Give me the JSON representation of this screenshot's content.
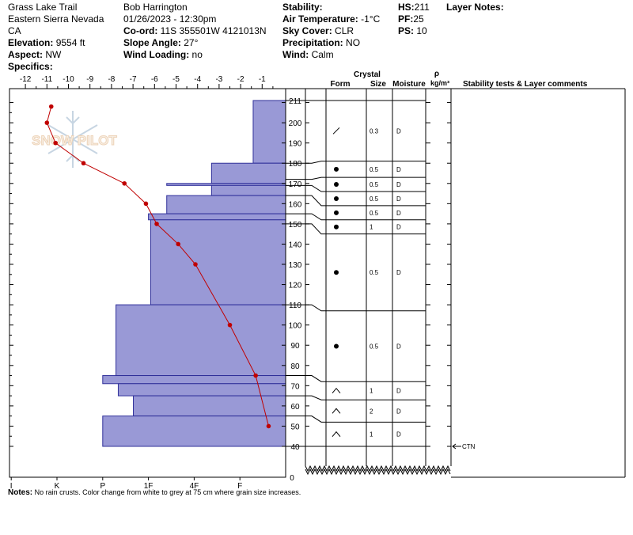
{
  "header": {
    "location": "Grass Lake Trail",
    "range": "Eastern Sierra Nevada",
    "state": "CA",
    "elevation_label": "Elevation:",
    "elevation": "9554 ft",
    "aspect_label": "Aspect:",
    "aspect": "NW",
    "specifics_label": "Specifics:",
    "observer": "Bob Harrington",
    "datetime": "01/26/2023 - 12:30pm",
    "coord_label": "Co-ord:",
    "coord": "11S 355501W 4121013N",
    "slope_label": "Slope Angle:",
    "slope": "27°",
    "wind_loading_label": "Wind Loading:",
    "wind_loading": "no",
    "stability_label": "Stability:",
    "air_temp_label": "Air Temperature:",
    "air_temp": "-1°C",
    "sky_label": "Sky Cover:",
    "sky": "CLR",
    "precip_label": "Precipitation:",
    "precip": "NO",
    "wind_label": "Wind:",
    "wind": "Calm",
    "hs_label": "HS:",
    "hs": "211",
    "pf_label": "PF:",
    "pf": "25",
    "ps_label": "PS:",
    "ps": "10",
    "layer_notes_label": "Layer Notes:"
  },
  "table_headers": {
    "crystal": "Crystal",
    "form": "Form",
    "size": "Size",
    "moisture": "Moisture",
    "rho": "ρ",
    "density_unit": "kg/m³",
    "stability": "Stability tests & Layer comments"
  },
  "watermark": "SNOW PILOT",
  "notes_label": "Notes:",
  "notes_text": "No rain crusts.  Color change from white to grey at 75 cm where grain size increases.",
  "chart_data": {
    "type": "snow-profile",
    "temperature_axis": {
      "ticks": [
        -12,
        -11,
        -10,
        -9,
        -8,
        -7,
        -6,
        -5,
        -4,
        -3,
        -2,
        -1
      ],
      "range": [
        -12.5,
        0
      ]
    },
    "height_axis": {
      "ticks": [
        40,
        50,
        60,
        70,
        80,
        90,
        100,
        110,
        120,
        130,
        140,
        150,
        160,
        170,
        180,
        190,
        200,
        211
      ],
      "break_label": "0",
      "range": [
        40,
        211
      ]
    },
    "hardness_axis": {
      "labels": [
        "I",
        "K",
        "P",
        "1F",
        "4F",
        "F"
      ]
    },
    "temperature_profile": {
      "color": "#c00000",
      "points": [
        {
          "height": 208,
          "temp": -10.8
        },
        {
          "height": 200,
          "temp": -11.0
        },
        {
          "height": 190,
          "temp": -10.6
        },
        {
          "height": 180,
          "temp": -9.3
        },
        {
          "height": 170,
          "temp": -7.4
        },
        {
          "height": 160,
          "temp": -6.4
        },
        {
          "height": 150,
          "temp": -5.9
        },
        {
          "height": 140,
          "temp": -4.9
        },
        {
          "height": 130,
          "temp": -4.1
        },
        {
          "height": 100,
          "temp": -2.5
        },
        {
          "height": 75,
          "temp": -1.3
        },
        {
          "height": 50,
          "temp": -0.7
        }
      ]
    },
    "hardness_layers": {
      "fill": "#9999d6",
      "layers": [
        {
          "top": 211,
          "bottom": 180,
          "hardness": 0.71
        },
        {
          "top": 180,
          "bottom": 170,
          "hardness": 1.62
        },
        {
          "top": 170,
          "bottom": 169,
          "hardness": 2.6
        },
        {
          "top": 169,
          "bottom": 164,
          "hardness": 1.62
        },
        {
          "top": 164,
          "bottom": 155,
          "hardness": 2.6
        },
        {
          "top": 155,
          "bottom": 152,
          "hardness": 3.0
        },
        {
          "top": 152,
          "bottom": 110,
          "hardness": 2.95
        },
        {
          "top": 110,
          "bottom": 75,
          "hardness": 3.71
        },
        {
          "top": 75,
          "bottom": 71,
          "hardness": 4.0
        },
        {
          "top": 71,
          "bottom": 65,
          "hardness": 3.66
        },
        {
          "top": 65,
          "bottom": 55,
          "hardness": 3.33
        },
        {
          "top": 55,
          "bottom": 40,
          "hardness": 4.0
        }
      ]
    },
    "layers_table": [
      {
        "top": 211,
        "bottom": 181,
        "form": "slash",
        "size": "0.3",
        "moisture": "D"
      },
      {
        "top": 181,
        "bottom": 173,
        "form": "dot",
        "size": "0.5",
        "moisture": "D"
      },
      {
        "top": 173,
        "bottom": 166,
        "form": "dot",
        "size": "0.5",
        "moisture": "D"
      },
      {
        "top": 166,
        "bottom": 159,
        "form": "dot",
        "size": "0.5",
        "moisture": "D"
      },
      {
        "top": 159,
        "bottom": 152,
        "form": "dot",
        "size": "0.5",
        "moisture": "D"
      },
      {
        "top": 152,
        "bottom": 145,
        "form": "dot",
        "size": "1",
        "moisture": "D"
      },
      {
        "top": 145,
        "bottom": 107,
        "form": "dot",
        "size": "0.5",
        "moisture": "D"
      },
      {
        "top": 107,
        "bottom": 72,
        "form": "dot",
        "size": "0.5",
        "moisture": "D"
      },
      {
        "top": 72,
        "bottom": 63,
        "form": "wedge",
        "size": "1",
        "moisture": "D"
      },
      {
        "top": 63,
        "bottom": 52,
        "form": "wedge",
        "size": "2",
        "moisture": "D"
      },
      {
        "top": 52,
        "bottom": 40,
        "form": "wedge",
        "size": "1",
        "moisture": "D"
      }
    ],
    "stability_tests": [
      {
        "height": 40,
        "label": "CTN"
      }
    ]
  }
}
